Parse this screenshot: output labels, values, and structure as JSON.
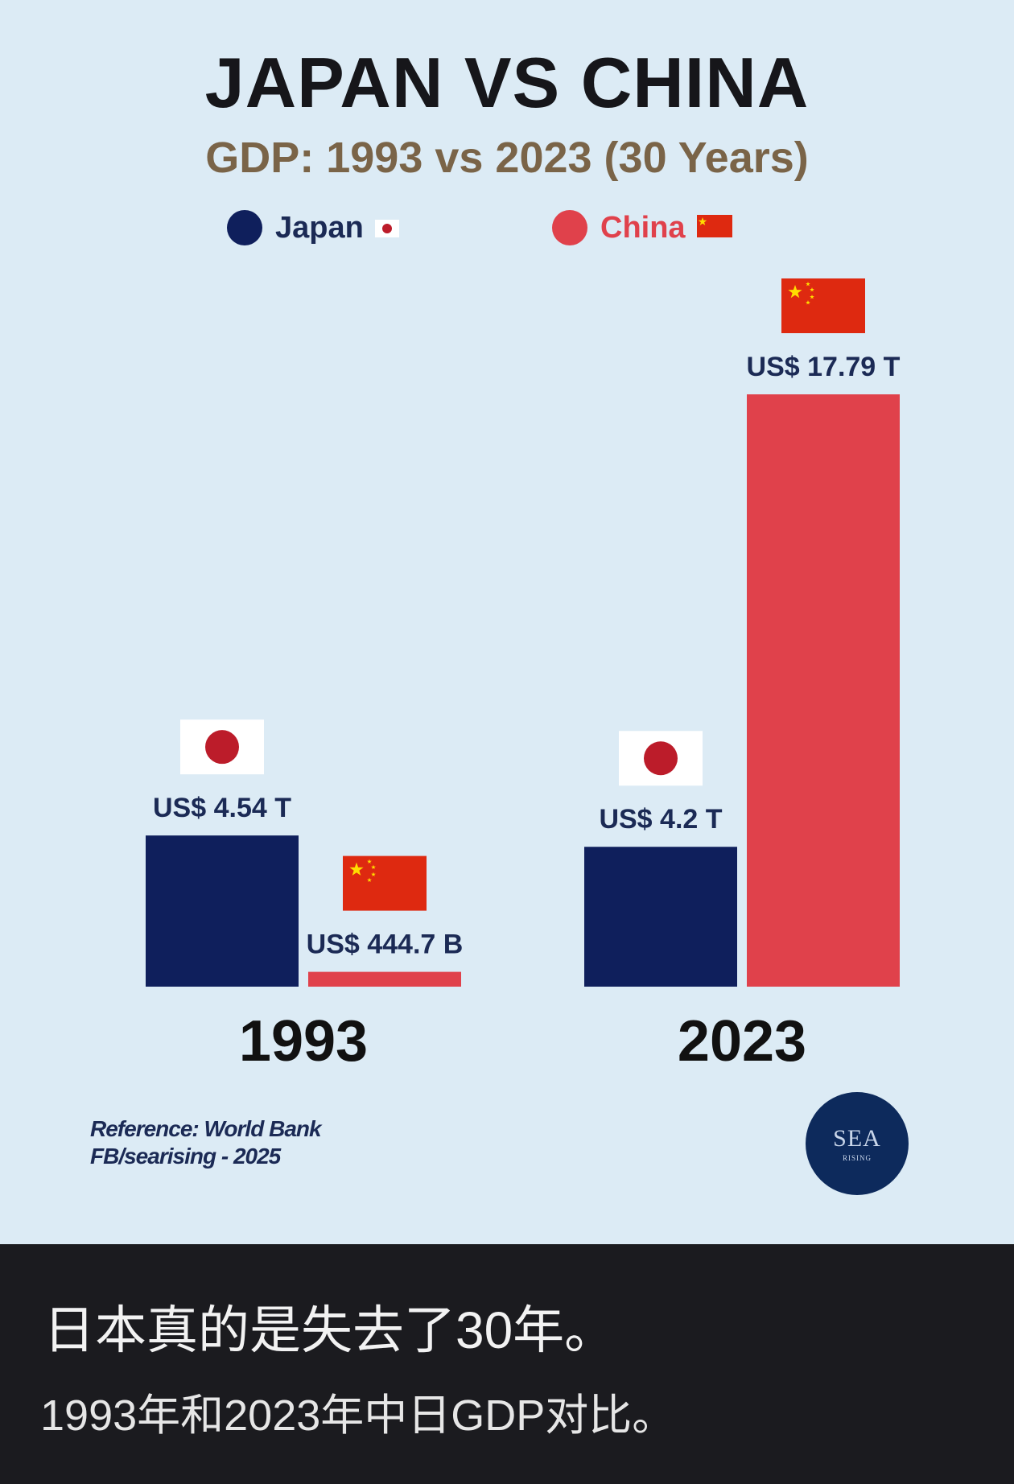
{
  "header": {
    "title": "JAPAN VS CHINA",
    "subtitle": "GDP: 1993 vs 2023 (30 Years)"
  },
  "legend": [
    {
      "label": "Japan",
      "color": "#0f1f5c"
    },
    {
      "label": "China",
      "color": "#e0414b"
    }
  ],
  "chart_data": {
    "type": "bar",
    "title": "JAPAN VS CHINA",
    "subtitle": "GDP: 1993 vs 2023 (30 Years)",
    "categories": [
      "1993",
      "2023"
    ],
    "unit": "US$ trillions",
    "series": [
      {
        "name": "Japan",
        "color": "#0f1f5c",
        "values": [
          4.54,
          4.2
        ],
        "labels": [
          "US$ 4.54 T",
          "US$ 4.2 T"
        ]
      },
      {
        "name": "China",
        "color": "#e0414b",
        "values": [
          0.4447,
          17.79
        ],
        "labels": [
          "US$ 444.7 B",
          "US$ 17.79 T"
        ]
      }
    ],
    "legend_position": "top"
  },
  "footer": {
    "reference": "Reference: World Bank",
    "credit": "FB/searising - 2025",
    "logo_text": "SEA",
    "logo_subtext": "RISING"
  },
  "caption": {
    "line1": "日本真的是失去了30年。",
    "line2": "1993年和2023年中日GDP对比。"
  }
}
